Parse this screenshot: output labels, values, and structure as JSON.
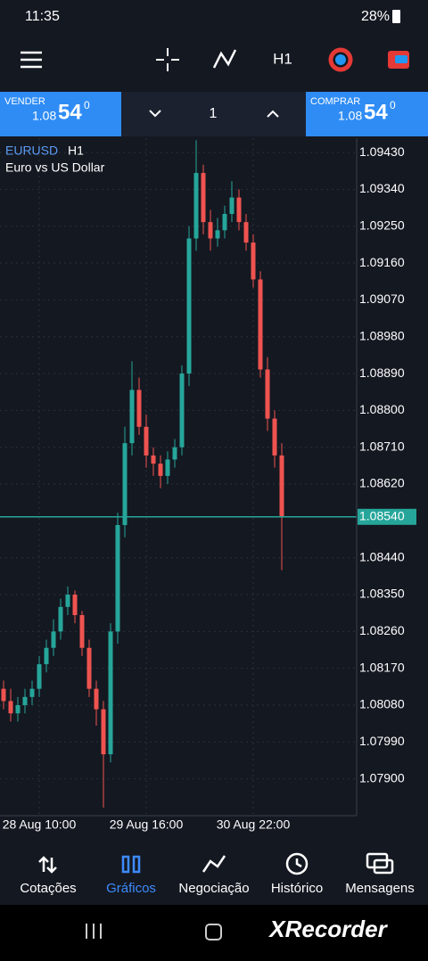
{
  "status_bar": {
    "time": "11:35",
    "battery": "28%"
  },
  "toolbar": {
    "timeframe": "H1"
  },
  "trade_panel": {
    "sell": {
      "label": "VENDER",
      "price_main": "1.08",
      "price_big": "54",
      "price_sup": "0"
    },
    "lot": "1",
    "buy": {
      "label": "COMPRAR",
      "price_main": "1.08",
      "price_big": "54",
      "price_sup": "0"
    }
  },
  "chart_data": {
    "type": "candlestick",
    "symbol": "EURUSD",
    "timeframe": "H1",
    "description": "Euro vs US Dollar",
    "categories": [
      null,
      null,
      null,
      null,
      null,
      "28 Aug 10:00",
      null,
      null,
      null,
      null,
      null,
      null,
      null,
      null,
      null,
      null,
      null,
      null,
      null,
      null,
      "29 Aug 16:00",
      null,
      null,
      null,
      null,
      null,
      null,
      null,
      null,
      null,
      null,
      null,
      null,
      null,
      null,
      "30 Aug 22:00",
      null,
      null,
      null,
      null
    ],
    "open": [
      1.0812,
      1.0809,
      1.0806,
      1.0808,
      1.081,
      1.0812,
      1.0818,
      1.0822,
      1.0826,
      1.0832,
      1.0835,
      1.083,
      1.0822,
      1.0812,
      1.0807,
      1.0796,
      1.0826,
      1.0852,
      1.0872,
      1.0885,
      1.0876,
      1.0869,
      1.0867,
      1.0864,
      1.0868,
      1.0871,
      1.0889,
      1.0922,
      1.0938,
      1.0926,
      1.0922,
      1.0924,
      1.0928,
      1.0932,
      1.0926,
      1.0921,
      1.0912,
      1.089,
      1.0878,
      1.0869
    ],
    "high": [
      1.0814,
      1.0812,
      1.081,
      1.0812,
      1.0814,
      1.082,
      1.0824,
      1.0829,
      1.0834,
      1.0837,
      1.0836,
      1.0831,
      1.0824,
      1.0814,
      1.0809,
      1.0828,
      1.0855,
      1.0876,
      1.0892,
      1.0888,
      1.0879,
      1.0871,
      1.0869,
      1.087,
      1.0873,
      1.0891,
      1.0925,
      1.0946,
      1.094,
      1.0929,
      1.0927,
      1.093,
      1.0936,
      1.0934,
      1.0928,
      1.0923,
      1.0914,
      1.0893,
      1.088,
      1.0872
    ],
    "low": [
      1.0807,
      1.0804,
      1.0804,
      1.0806,
      1.0808,
      1.081,
      1.0816,
      1.082,
      1.0824,
      1.083,
      1.0828,
      1.082,
      1.081,
      1.0803,
      1.0783,
      1.0794,
      1.0823,
      1.0849,
      1.0869,
      1.0874,
      1.0866,
      1.0864,
      1.0861,
      1.0862,
      1.0866,
      1.0869,
      1.0886,
      1.0919,
      1.0923,
      1.0919,
      1.092,
      1.0922,
      1.0926,
      1.0924,
      1.0919,
      1.091,
      1.0888,
      1.0875,
      1.0866,
      1.0841
    ],
    "close": [
      1.0809,
      1.0806,
      1.0808,
      1.081,
      1.0812,
      1.0818,
      1.0822,
      1.0826,
      1.0832,
      1.0835,
      1.083,
      1.0822,
      1.0812,
      1.0807,
      1.0796,
      1.0826,
      1.0852,
      1.0872,
      1.0885,
      1.0876,
      1.0869,
      1.0867,
      1.0864,
      1.0868,
      1.0871,
      1.0889,
      1.0922,
      1.0938,
      1.0926,
      1.0922,
      1.0924,
      1.0928,
      1.0932,
      1.0926,
      1.0921,
      1.0912,
      1.089,
      1.0878,
      1.0869,
      1.0854
    ],
    "up_color": "#26a69a",
    "down_color": "#ef5350",
    "ylim": [
      1.0781,
      1.09465
    ],
    "yticks": [
      {
        "value": 1.0943,
        "label": "1.09430"
      },
      {
        "value": 1.0934,
        "label": "1.09340"
      },
      {
        "value": 1.0925,
        "label": "1.09250"
      },
      {
        "value": 1.0916,
        "label": "1.09160"
      },
      {
        "value": 1.0907,
        "label": "1.09070"
      },
      {
        "value": 1.0898,
        "label": "1.08980"
      },
      {
        "value": 1.0889,
        "label": "1.08890"
      },
      {
        "value": 1.088,
        "label": "1.08800"
      },
      {
        "value": 1.0871,
        "label": "1.08710"
      },
      {
        "value": 1.0862,
        "label": "1.08620"
      },
      {
        "value": 1.0844,
        "label": "1.08440"
      },
      {
        "value": 1.0835,
        "label": "1.08350"
      },
      {
        "value": 1.0826,
        "label": "1.08260"
      },
      {
        "value": 1.0817,
        "label": "1.08170"
      },
      {
        "value": 1.0808,
        "label": "1.08080"
      },
      {
        "value": 1.0799,
        "label": "1.07990"
      },
      {
        "value": 1.079,
        "label": "1.07900"
      }
    ],
    "price_line": {
      "value": 1.0854,
      "label": "1.08540"
    },
    "grid": true
  },
  "nav": [
    "Cotações",
    "Gráficos",
    "Negociação",
    "Histórico",
    "Mensagens"
  ],
  "watermark": "XRecorder"
}
